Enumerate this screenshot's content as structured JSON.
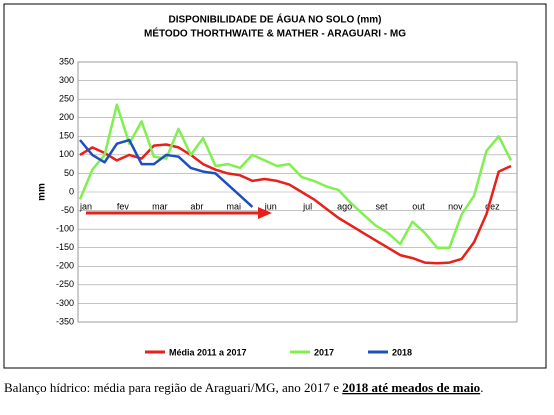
{
  "chart_data": {
    "type": "line",
    "title": "DISPONIBILIDADE DE ÁGUA NO SOLO (mm)",
    "subtitle": "MÉTODO THORTHWAITE & MATHER - ARAGUARI - MG",
    "y_label": "mm",
    "categories": [
      "jan",
      null,
      null,
      "fev",
      null,
      null,
      "mar",
      null,
      null,
      "abr",
      null,
      null,
      "mai",
      null,
      null,
      "jun",
      null,
      null,
      "jul",
      null,
      null,
      "ago",
      null,
      null,
      "set",
      null,
      null,
      "out",
      null,
      null,
      "nov",
      null,
      null,
      "dez",
      null,
      null
    ],
    "series": [
      {
        "name": "Média 2011 a 2017",
        "color": "#e8201a",
        "values": [
          100,
          120,
          105,
          85,
          100,
          90,
          125,
          128,
          120,
          100,
          75,
          60,
          50,
          45,
          30,
          35,
          30,
          20,
          0,
          -20,
          -45,
          -70,
          -90,
          -110,
          -130,
          -150,
          -170,
          -178,
          -190,
          -192,
          -190,
          -180,
          -135,
          -60,
          55,
          70
        ]
      },
      {
        "name": "2017",
        "color": "#80f050",
        "values": [
          -20,
          60,
          100,
          235,
          130,
          190,
          95,
          90,
          170,
          100,
          145,
          70,
          75,
          65,
          100,
          85,
          70,
          75,
          40,
          30,
          15,
          5,
          -30,
          -60,
          -90,
          -110,
          -140,
          -80,
          -110,
          -150,
          -150,
          -60,
          -10,
          110,
          150,
          85
        ]
      },
      {
        "name": "2018",
        "color": "#1e4fc0",
        "values": [
          140,
          100,
          80,
          130,
          140,
          75,
          75,
          100,
          95,
          65,
          55,
          50,
          20,
          -10,
          -40,
          null,
          null,
          null,
          null,
          null,
          null,
          null,
          null,
          null,
          null,
          null,
          null,
          null,
          null,
          null,
          null,
          null,
          null,
          null,
          null,
          null
        ]
      }
    ],
    "ylim": [
      -350,
      350
    ],
    "yticks": [
      -350,
      -300,
      -250,
      -200,
      -150,
      -100,
      -50,
      0,
      50,
      100,
      150,
      200,
      250,
      300,
      350
    ],
    "grid": true
  },
  "caption": {
    "text": "Balanço hídrico: média para região de Araguari/MG, ano 2017 e ",
    "emphasis": "2018 até meados de maio",
    "end": "."
  }
}
